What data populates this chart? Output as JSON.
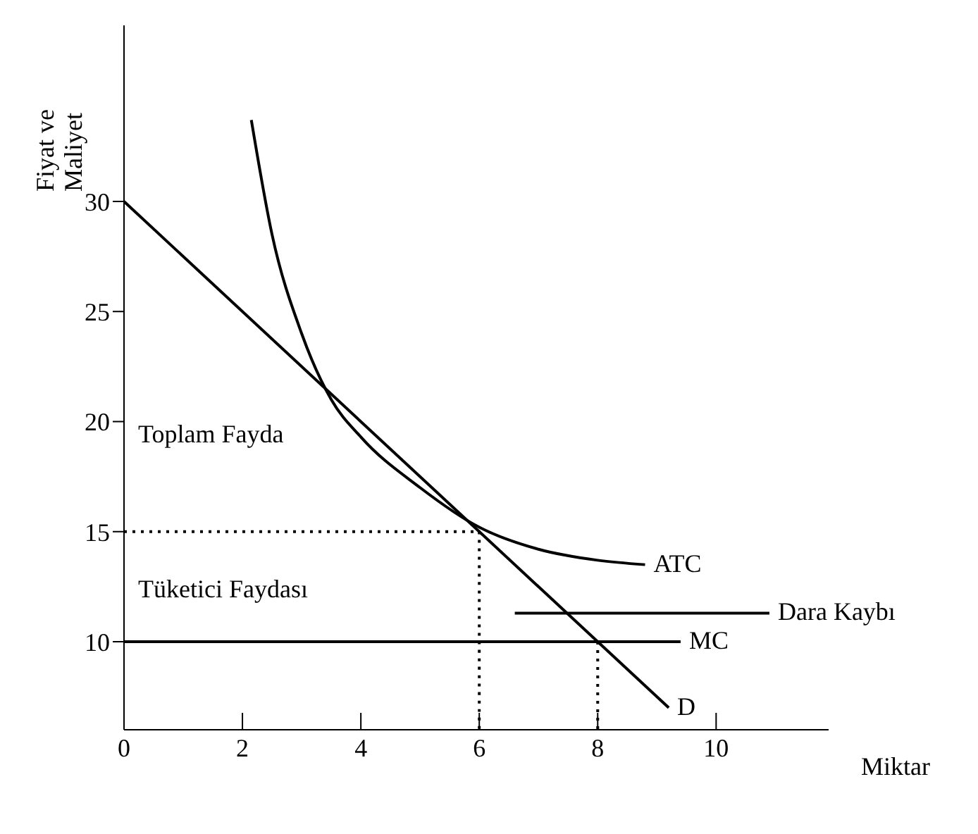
{
  "chart_data": {
    "type": "line",
    "xlabel": "Miktar",
    "ylabel": "Fiyat ve Maliyet",
    "xlim": [
      0,
      11.9
    ],
    "xticks": [
      0,
      2,
      4,
      6,
      8,
      10
    ],
    "ylim": [
      6,
      38
    ],
    "yticks": [
      10,
      15,
      20,
      25,
      30
    ],
    "grid": false,
    "legend": "right",
    "marker": "none",
    "series": [
      {
        "name": "D",
        "color": "#000000",
        "line_style": "solid",
        "x": [
          0,
          9.2
        ],
        "values": [
          30,
          7
        ]
      },
      {
        "name": "ATC",
        "color": "#000000",
        "line_style": "solid",
        "x": [
          2.15,
          2.5,
          3,
          3.5,
          4,
          5,
          6,
          7,
          8,
          8.8
        ],
        "values": [
          33.7,
          28.5,
          24,
          21,
          19.3,
          17,
          15.2,
          14.2,
          13.7,
          13.5
        ]
      },
      {
        "name": "MC",
        "color": "#000000",
        "line_style": "solid",
        "x": [
          0,
          9.4
        ],
        "values": [
          10,
          10
        ]
      },
      {
        "name": "Dara Kaybı",
        "color": "#000000",
        "line_style": "solid",
        "x": [
          6.6,
          10.9
        ],
        "values": [
          11.3,
          11.3
        ]
      },
      {
        "color": "#000000",
        "line_style": "dotted",
        "x": [
          0,
          6,
          6
        ],
        "values": [
          15,
          15,
          6
        ]
      },
      {
        "color": "#000000",
        "line_style": "dotted",
        "x": [
          8,
          8
        ],
        "values": [
          10,
          6
        ]
      }
    ],
    "annotations": [
      "Toplam Fayda",
      "Tüketici Faydası"
    ]
  }
}
